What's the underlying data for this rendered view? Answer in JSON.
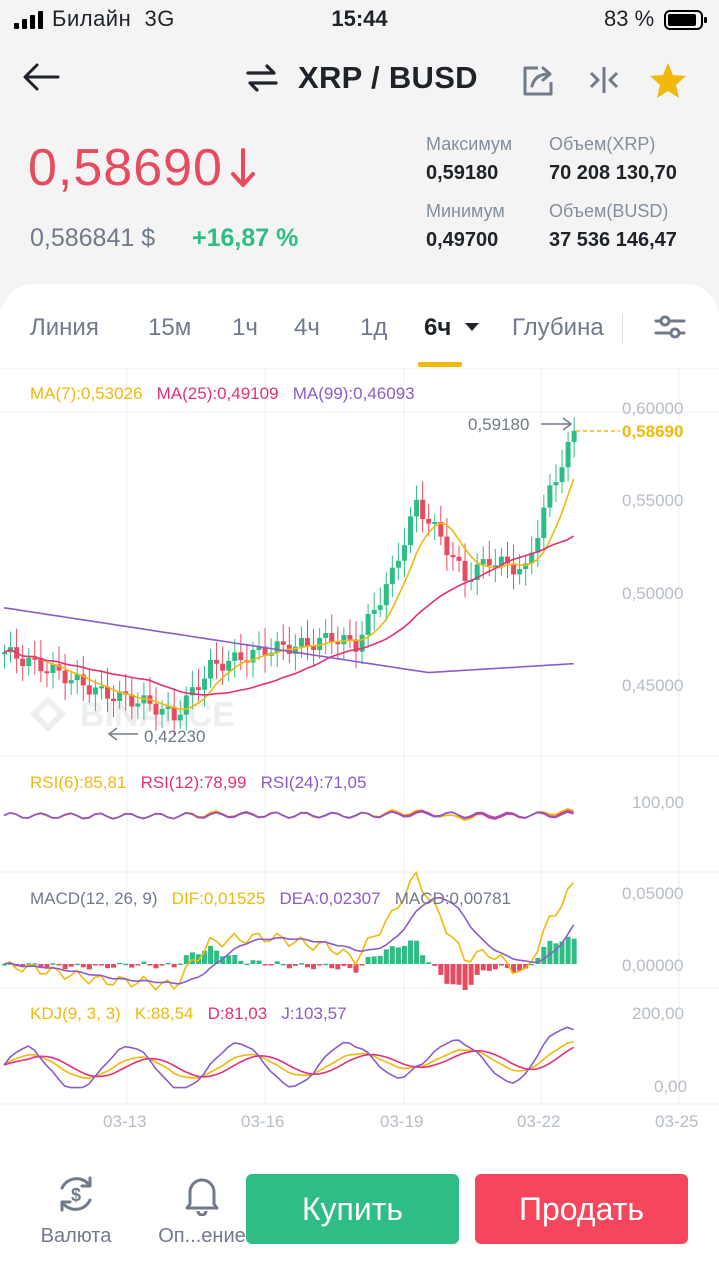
{
  "status_bar": {
    "carrier": "Билайн",
    "network": "3G",
    "time": "15:44",
    "battery": "83 %"
  },
  "header": {
    "pair": "XRP / BUSD"
  },
  "ticker": {
    "price": "0,58690",
    "price_usd": "0,586841 $",
    "change": "+16,87 %",
    "high_label": "Максимум",
    "high": "0,59180",
    "low_label": "Минимум",
    "low": "0,49700",
    "vol_base_label": "Объем(XRP)",
    "vol_base": "70 208 130,70",
    "vol_quote_label": "Объем(BUSD)",
    "vol_quote": "37 536 146,47",
    "colors": {
      "down": "#e84a5f",
      "up": "#2ebd85",
      "accent": "#f0b90b"
    }
  },
  "tabs": [
    "Линия",
    "15м",
    "1ч",
    "4ч",
    "1д",
    "6ч",
    "Глубина"
  ],
  "active_tab": "6ч",
  "chart": {
    "ma_legend": [
      "MA(7):0,53026",
      "MA(25):0,49109",
      "MA(99):0,46093"
    ],
    "price_axis": [
      "0,60000",
      "0,55000",
      "0,50000",
      "0,45000"
    ],
    "current_price_tag": "0,58690",
    "high_marker": "0,59180",
    "low_marker": "0,42230",
    "watermark": "BINANCE",
    "rsi_legend": [
      "RSI(6):85,81",
      "RSI(12):78,99",
      "RSI(24):71,05"
    ],
    "rsi_axis": [
      "100,00"
    ],
    "macd_legend": [
      "MACD(12, 26, 9)",
      "DIF:0,01525",
      "DEA:0,02307",
      "MACD:0,00781"
    ],
    "macd_axis": [
      "0,05000",
      "0,00000"
    ],
    "kdj_legend": [
      "KDJ(9, 3, 3)",
      "K:88,54",
      "D:81,03",
      "J:103,57"
    ],
    "kdj_axis": [
      "200,00",
      "0,00"
    ],
    "dates": [
      "03-13",
      "03-16",
      "03-19",
      "03-22",
      "03-25"
    ]
  },
  "bottom_bar": {
    "currency": "Валюта",
    "alerts": "Оп...ение",
    "buy": "Купить",
    "sell": "Продать"
  },
  "icons": [
    "back-arrow-icon",
    "swap-icon",
    "share-icon",
    "compare-icon",
    "star-icon",
    "arrow-down-icon",
    "caret-down-icon",
    "settings-sliders-icon",
    "currency-switch-icon",
    "bell-icon"
  ]
}
